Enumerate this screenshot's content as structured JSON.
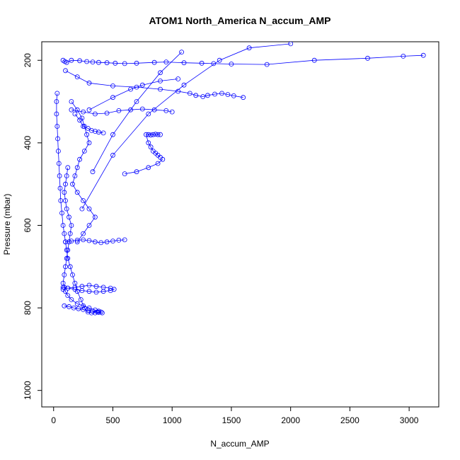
{
  "chart_data": {
    "type": "line",
    "title": "ATOM1 North_America N_accum_AMP",
    "xlabel": "N_accum_AMP",
    "ylabel": "Pressure (mbar)",
    "xlim": [
      -100,
      3250
    ],
    "ylim": [
      1040,
      155
    ],
    "y_inverted": true,
    "x_ticks": [
      0,
      500,
      1000,
      1500,
      2000,
      2500,
      3000
    ],
    "y_ticks": [
      200,
      400,
      600,
      800,
      1000
    ],
    "grid": false,
    "legend": "none",
    "marker": "open-circle",
    "color": "#0000ff",
    "series": [
      {
        "x": [
          80,
          95,
          110,
          150,
          220,
          280,
          330,
          380,
          450,
          520,
          600,
          700,
          850,
          950,
          1100,
          1250,
          1350,
          1500,
          1800,
          2200,
          2650,
          2950,
          3120
        ],
        "y": [
          200,
          203,
          205,
          200,
          201,
          203,
          204,
          205,
          206,
          207,
          208,
          207,
          205,
          204,
          206,
          207,
          208,
          209,
          210,
          200,
          195,
          190,
          188
        ]
      },
      {
        "x": [
          100,
          200,
          300,
          500,
          700,
          900,
          1050,
          1150,
          1200,
          1260,
          1300,
          1360,
          1420,
          1470,
          1520,
          1600
        ],
        "y": [
          225,
          240,
          255,
          262,
          265,
          270,
          275,
          280,
          285,
          288,
          285,
          282,
          280,
          283,
          286,
          290
        ]
      },
      {
        "x": [
          150,
          250,
          350,
          450,
          550,
          650,
          750,
          850,
          950,
          1000
        ],
        "y": [
          320,
          325,
          330,
          328,
          322,
          320,
          318,
          320,
          322,
          325
        ]
      },
      {
        "x": [
          900,
          880,
          860,
          840,
          820,
          800,
          780,
          800,
          820,
          840,
          860,
          880,
          900
        ],
        "y": [
          380,
          380,
          379,
          380,
          381,
          380,
          380,
          400,
          410,
          420,
          425,
          430,
          435
        ]
      },
      {
        "x": [
          600,
          700,
          800,
          880,
          920
        ],
        "y": [
          475,
          470,
          460,
          450,
          440
        ]
      },
      {
        "x": [
          30,
          25,
          25,
          30,
          35,
          40,
          45,
          50,
          55,
          60,
          70,
          80,
          90,
          100,
          110,
          120,
          140,
          160,
          180,
          200,
          230,
          260,
          290,
          320,
          350,
          380,
          400,
          380,
          350,
          300,
          250,
          200,
          150,
          120,
          100,
          90,
          80,
          90,
          100,
          110,
          120,
          130,
          140,
          150,
          130,
          110,
          100,
          90,
          100,
          110,
          120
        ],
        "y": [
          280,
          300,
          330,
          360,
          390,
          420,
          450,
          480,
          510,
          540,
          570,
          600,
          620,
          640,
          660,
          680,
          700,
          720,
          740,
          760,
          780,
          800,
          810,
          812,
          812,
          811,
          810,
          808,
          805,
          800,
          795,
          790,
          780,
          770,
          760,
          750,
          740,
          720,
          700,
          680,
          660,
          640,
          620,
          600,
          580,
          560,
          540,
          520,
          500,
          480,
          460
        ]
      },
      {
        "x": [
          100,
          150,
          200,
          250,
          300,
          350,
          400,
          450,
          500,
          550,
          600
        ],
        "y": [
          640,
          638,
          636,
          635,
          637,
          640,
          642,
          640,
          638,
          636,
          635
        ]
      },
      {
        "x": [
          80,
          120,
          180,
          240,
          300,
          360,
          420,
          480,
          510,
          480,
          420,
          360,
          300,
          240,
          180,
          120,
          80
        ],
        "y": [
          750,
          752,
          755,
          758,
          760,
          762,
          760,
          758,
          755,
          752,
          750,
          748,
          745,
          748,
          750,
          752,
          755
        ]
      },
      {
        "x": [
          90,
          130,
          170,
          210,
          250,
          290,
          330,
          370,
          410
        ],
        "y": [
          795,
          797,
          800,
          802,
          804,
          806,
          808,
          810,
          812
        ]
      },
      {
        "x": [
          150,
          200,
          240,
          260,
          280,
          300,
          260,
          220,
          200,
          180,
          160,
          200,
          250,
          300,
          350,
          300,
          250,
          200
        ],
        "y": [
          300,
          320,
          340,
          360,
          380,
          400,
          420,
          440,
          460,
          480,
          500,
          520,
          540,
          560,
          580,
          600,
          620,
          640
        ]
      },
      {
        "x": [
          330,
          500,
          700,
          900,
          1080
        ],
        "y": [
          470,
          380,
          300,
          230,
          180
        ]
      },
      {
        "x": [
          240,
          500,
          800,
          1100,
          1400,
          1650,
          2000
        ],
        "y": [
          560,
          430,
          330,
          260,
          200,
          170,
          160
        ]
      },
      {
        "x": [
          300,
          500,
          650,
          750,
          900,
          1050
        ],
        "y": [
          320,
          290,
          270,
          260,
          250,
          245
        ]
      },
      {
        "x": [
          180,
          220,
          250,
          290,
          320,
          350,
          380,
          420
        ],
        "y": [
          330,
          345,
          360,
          365,
          370,
          372,
          374,
          376
        ]
      }
    ]
  }
}
